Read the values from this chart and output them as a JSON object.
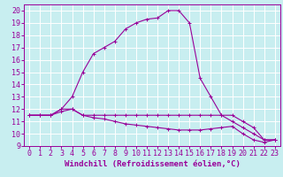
{
  "xlabel": "Windchill (Refroidissement éolien,°C)",
  "background_color": "#c8eef0",
  "grid_color": "#ffffff",
  "line_color": "#990099",
  "xlim": [
    -0.5,
    23.5
  ],
  "ylim": [
    9,
    20.5
  ],
  "yticks": [
    9,
    10,
    11,
    12,
    13,
    14,
    15,
    16,
    17,
    18,
    19,
    20
  ],
  "xticks": [
    0,
    1,
    2,
    3,
    4,
    5,
    6,
    7,
    8,
    9,
    10,
    11,
    12,
    13,
    14,
    15,
    16,
    17,
    18,
    19,
    20,
    21,
    22,
    23
  ],
  "line1_x": [
    0,
    1,
    2,
    3,
    4,
    5,
    6,
    7,
    8,
    9,
    10,
    11,
    12,
    13,
    14,
    15,
    16,
    17,
    18,
    19,
    20,
    21,
    22,
    23
  ],
  "line1_y": [
    11.5,
    11.5,
    11.5,
    12.0,
    12.0,
    11.5,
    11.5,
    11.5,
    11.5,
    11.5,
    11.5,
    11.5,
    11.5,
    11.5,
    11.5,
    11.5,
    11.5,
    11.5,
    11.5,
    11.5,
    11.0,
    10.5,
    9.5,
    9.5
  ],
  "line2_x": [
    0,
    1,
    2,
    3,
    4,
    5,
    6,
    7,
    8,
    9,
    10,
    11,
    12,
    13,
    14,
    15,
    16,
    17,
    18,
    19,
    20,
    21,
    22,
    23
  ],
  "line2_y": [
    11.5,
    11.5,
    11.5,
    12.0,
    13.0,
    15.0,
    16.5,
    17.0,
    17.5,
    18.5,
    19.0,
    19.3,
    19.4,
    20.0,
    20.0,
    19.0,
    14.5,
    13.0,
    11.5,
    11.0,
    10.5,
    10.0,
    9.5,
    9.5
  ],
  "line3_x": [
    0,
    1,
    2,
    3,
    4,
    5,
    6,
    7,
    8,
    9,
    10,
    11,
    12,
    13,
    14,
    15,
    16,
    17,
    18,
    19,
    20,
    21,
    22,
    23
  ],
  "line3_y": [
    11.5,
    11.5,
    11.5,
    11.8,
    12.0,
    11.5,
    11.3,
    11.2,
    11.0,
    10.8,
    10.7,
    10.6,
    10.5,
    10.4,
    10.3,
    10.3,
    10.3,
    10.4,
    10.5,
    10.6,
    10.0,
    9.5,
    9.3,
    9.5
  ],
  "xlabel_fontsize": 6.5,
  "tick_fontsize": 6.0
}
